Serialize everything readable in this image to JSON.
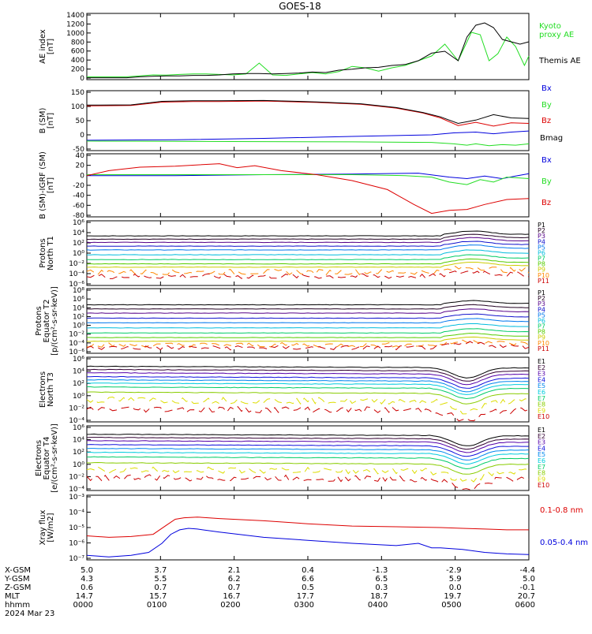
{
  "title": "GOES-18",
  "colors": {
    "black": "#000000",
    "red": "#dd0000",
    "green": "#22dd22",
    "blue": "#0000dd",
    "protons": [
      "#000000",
      "#220022",
      "#550088",
      "#1111cc",
      "#0077ee",
      "#00bbdd",
      "#00cc66",
      "#55cc00",
      "#cccc00",
      "#ff8800",
      "#cc0000"
    ],
    "electrons": [
      "#000000",
      "#330033",
      "#5500aa",
      "#1111dd",
      "#0088ee",
      "#00ccdd",
      "#00cc66",
      "#88cc00",
      "#dddd00",
      "#ff8800",
      "#cc0000"
    ]
  },
  "chart_data": [
    {
      "type": "line",
      "id": "ae",
      "ylabel": "AE index\n[nT]",
      "yticks": [
        "1400",
        "1200",
        "1000",
        "800",
        "600",
        "400",
        "200",
        "0"
      ],
      "ylim": [
        0,
        1400
      ],
      "series": [
        {
          "name": "Kyoto\nproxy AE",
          "color": "#22dd22",
          "x": [
            0,
            0.03,
            0.06,
            0.09,
            0.12,
            0.15,
            0.18,
            0.21,
            0.24,
            0.27,
            0.3,
            0.33,
            0.36,
            0.39,
            0.42,
            0.45,
            0.48,
            0.51,
            0.54,
            0.57,
            0.6,
            0.63,
            0.66,
            0.69,
            0.72,
            0.75,
            0.78,
            0.81,
            0.84,
            0.85,
            0.87,
            0.89,
            0.91,
            0.93,
            0.95,
            0.97,
            0.99,
            1.0
          ],
          "y": [
            60,
            60,
            60,
            60,
            80,
            100,
            95,
            110,
            120,
            120,
            110,
            100,
            120,
            350,
            100,
            90,
            120,
            150,
            120,
            170,
            280,
            250,
            180,
            250,
            300,
            400,
            500,
            750,
            400,
            600,
            1000,
            950,
            400,
            550,
            900,
            700,
            300,
            500
          ]
        },
        {
          "name": "Themis AE",
          "color": "#000000",
          "x": [
            0,
            0.03,
            0.06,
            0.09,
            0.12,
            0.15,
            0.18,
            0.21,
            0.24,
            0.27,
            0.3,
            0.33,
            0.36,
            0.39,
            0.42,
            0.45,
            0.48,
            0.51,
            0.54,
            0.57,
            0.6,
            0.63,
            0.66,
            0.69,
            0.72,
            0.75,
            0.78,
            0.81,
            0.84,
            0.86,
            0.88,
            0.9,
            0.92,
            0.94,
            0.96,
            0.98,
            1.0
          ],
          "y": [
            40,
            40,
            40,
            40,
            60,
            70,
            80,
            80,
            90,
            90,
            100,
            120,
            130,
            130,
            120,
            130,
            140,
            160,
            150,
            200,
            220,
            250,
            260,
            300,
            320,
            400,
            560,
            600,
            400,
            900,
            1150,
            1200,
            1100,
            850,
            800,
            750,
            800
          ]
        }
      ]
    },
    {
      "type": "line",
      "id": "bsm",
      "ylabel": "B (SM)\n[nT]",
      "yticks": [
        "150",
        "100",
        "50",
        "0",
        "-50"
      ],
      "ylim": [
        -60,
        160
      ],
      "series": [
        {
          "name": "Bx",
          "color": "#0000dd",
          "x": [
            0,
            0.2,
            0.4,
            0.6,
            0.78,
            0.83,
            0.88,
            0.92,
            0.96,
            1.0
          ],
          "y": [
            -22,
            -20,
            -15,
            -8,
            -2,
            5,
            8,
            2,
            8,
            12
          ]
        },
        {
          "name": "By",
          "color": "#22dd22",
          "x": [
            0,
            0.2,
            0.4,
            0.6,
            0.78,
            0.83,
            0.86,
            0.88,
            0.91,
            0.94,
            0.97,
            1.0
          ],
          "y": [
            -25,
            -26,
            -27,
            -28,
            -30,
            -35,
            -40,
            -35,
            -42,
            -38,
            -40,
            -35
          ]
        },
        {
          "name": "Bz",
          "color": "#dd0000",
          "x": [
            0,
            0.1,
            0.17,
            0.24,
            0.3,
            0.4,
            0.52,
            0.62,
            0.7,
            0.76,
            0.8,
            0.84,
            0.88,
            0.92,
            0.96,
            1.0
          ],
          "y": [
            104,
            106,
            118,
            120,
            120,
            122,
            117,
            110,
            96,
            78,
            60,
            32,
            44,
            30,
            42,
            40
          ]
        },
        {
          "name": "Bmag",
          "color": "#000000",
          "x": [
            0,
            0.1,
            0.17,
            0.24,
            0.3,
            0.4,
            0.52,
            0.62,
            0.7,
            0.76,
            0.8,
            0.84,
            0.88,
            0.92,
            0.96,
            1.0
          ],
          "y": [
            107,
            108,
            121,
            123,
            123,
            124,
            119,
            112,
            98,
            80,
            64,
            40,
            52,
            72,
            60,
            58
          ]
        }
      ]
    },
    {
      "type": "line",
      "id": "bigrf",
      "ylabel": "B (SM)-IGRF (SM)\n[nT]",
      "yticks": [
        "40",
        "20",
        "0",
        "-20",
        "-40",
        "-60",
        "-80"
      ],
      "ylim": [
        -85,
        42
      ],
      "series": [
        {
          "name": "Bx",
          "color": "#0000dd",
          "x": [
            0,
            0.2,
            0.4,
            0.6,
            0.75,
            0.82,
            0.86,
            0.9,
            0.94,
            0.97,
            1.0
          ],
          "y": [
            -2,
            -2,
            0,
            1,
            3,
            -5,
            -8,
            -3,
            -8,
            -3,
            2
          ]
        },
        {
          "name": "By",
          "color": "#22dd22",
          "x": [
            0,
            0.2,
            0.4,
            0.6,
            0.72,
            0.78,
            0.82,
            0.86,
            0.89,
            0.92,
            0.95,
            1.0
          ],
          "y": [
            0,
            0,
            0,
            0,
            -2,
            -5,
            -15,
            -20,
            -10,
            -15,
            -5,
            -8
          ]
        },
        {
          "name": "Bz",
          "color": "#dd0000",
          "x": [
            0,
            0.05,
            0.12,
            0.2,
            0.3,
            0.34,
            0.38,
            0.44,
            0.52,
            0.6,
            0.68,
            0.74,
            0.78,
            0.82,
            0.86,
            0.9,
            0.95,
            1.0
          ],
          "y": [
            -2,
            8,
            15,
            17,
            22,
            14,
            18,
            8,
            0,
            -12,
            -30,
            -60,
            -78,
            -72,
            -70,
            -60,
            -50,
            -48
          ]
        }
      ]
    },
    {
      "type": "line",
      "id": "pnt1",
      "ylabel": "Protons\nNorth T1",
      "yticks": [
        "10⁶",
        "10⁴",
        "10²",
        "10⁰",
        "10⁻²",
        "10⁻⁴",
        "10⁻⁶"
      ],
      "ylim": [
        -6,
        6
      ],
      "series": [
        {
          "name": "P1",
          "color": "#000000"
        },
        {
          "name": "P2",
          "color": "#220022"
        },
        {
          "name": "P3",
          "color": "#550088"
        },
        {
          "name": "P4",
          "color": "#1111cc"
        },
        {
          "name": "P5",
          "color": "#0077ee"
        },
        {
          "name": "P6",
          "color": "#00bbdd"
        },
        {
          "name": "P7",
          "color": "#00cc66"
        },
        {
          "name": "P8",
          "color": "#55cc00"
        },
        {
          "name": "P9",
          "color": "#cccc00"
        },
        {
          "name": "P10",
          "color": "#ff8800"
        },
        {
          "name": "P11",
          "color": "#cc0000"
        }
      ],
      "base_levels": [
        3.2,
        2.6,
        2.0,
        1.3,
        0.6,
        -0.3,
        -1.2,
        -2.0,
        -2.6,
        -3.5,
        -4.3
      ]
    },
    {
      "type": "line",
      "id": "pet2",
      "ylabel": "Protons\nEquator T2\n[p/(cm²-s-sr-keV)]",
      "yticks": [
        "10⁸",
        "10⁶",
        "10⁴",
        "10²",
        "10⁰",
        "10⁻²",
        "10⁻⁴",
        "10⁻⁶"
      ],
      "ylim": [
        -6,
        8
      ],
      "series": [
        {
          "name": "P1",
          "color": "#000000"
        },
        {
          "name": "P2",
          "color": "#220022"
        },
        {
          "name": "P3",
          "color": "#550088"
        },
        {
          "name": "P4",
          "color": "#1111cc"
        },
        {
          "name": "P5",
          "color": "#0077ee"
        },
        {
          "name": "P6",
          "color": "#00bbdd"
        },
        {
          "name": "P7",
          "color": "#00cc66"
        },
        {
          "name": "P8",
          "color": "#55cc00"
        },
        {
          "name": "P9",
          "color": "#cccc00"
        },
        {
          "name": "P10",
          "color": "#ff8800"
        },
        {
          "name": "P11",
          "color": "#cc0000"
        }
      ],
      "base_levels": [
        4.5,
        3.6,
        2.7,
        1.6,
        0.6,
        -0.5,
        -1.6,
        -2.6,
        -3.4,
        -4.2,
        -4.8
      ]
    },
    {
      "type": "line",
      "id": "ent3",
      "ylabel": "Electrons\nNorth T3",
      "yticks": [
        "10⁶",
        "10⁴",
        "10²",
        "10⁰",
        "10⁻²",
        "10⁻⁴"
      ],
      "ylim": [
        -4,
        6
      ],
      "series": [
        {
          "name": "E1",
          "color": "#000000"
        },
        {
          "name": "E2",
          "color": "#330033"
        },
        {
          "name": "E3",
          "color": "#5500aa"
        },
        {
          "name": "E4",
          "color": "#1111dd"
        },
        {
          "name": "E5",
          "color": "#0088ee"
        },
        {
          "name": "E6",
          "color": "#00ccdd"
        },
        {
          "name": "E7",
          "color": "#00cc66"
        },
        {
          "name": "E8",
          "color": "#88cc00"
        },
        {
          "name": "E9",
          "color": "#dddd00"
        },
        {
          "name": "E10",
          "color": "#cc0000"
        }
      ],
      "base_levels": [
        4.6,
        4.1,
        3.6,
        3.0,
        2.5,
        2.0,
        1.4,
        0.6,
        -0.6,
        -2.0
      ]
    },
    {
      "type": "line",
      "id": "eet4",
      "ylabel": "Electrons\nEquator T4\n[e/(cm²-s-sr-keV)]",
      "yticks": [
        "10⁶",
        "10⁴",
        "10²",
        "10⁰",
        "10⁻²",
        "10⁻⁴"
      ],
      "ylim": [
        -4,
        6
      ],
      "series": [
        {
          "name": "E1",
          "color": "#000000"
        },
        {
          "name": "E2",
          "color": "#330033"
        },
        {
          "name": "E3",
          "color": "#5500aa"
        },
        {
          "name": "E4",
          "color": "#1111dd"
        },
        {
          "name": "E5",
          "color": "#0088ee"
        },
        {
          "name": "E6",
          "color": "#00ccdd"
        },
        {
          "name": "E7",
          "color": "#00cc66"
        },
        {
          "name": "E8",
          "color": "#88cc00"
        },
        {
          "name": "E9",
          "color": "#dddd00"
        },
        {
          "name": "E10",
          "color": "#cc0000"
        }
      ],
      "base_levels": [
        4.7,
        4.2,
        3.7,
        3.1,
        2.5,
        1.9,
        1.2,
        0.3,
        -0.8,
        -2.0
      ]
    },
    {
      "type": "line",
      "id": "xray",
      "ylabel": "Xray flux\n[W/m2]",
      "yticks": [
        "10⁻³",
        "10⁻⁴",
        "10⁻⁵",
        "10⁻⁶",
        "10⁻⁷"
      ],
      "ylim": [
        -7.3,
        -3
      ],
      "series": [
        {
          "name": "0.1-0.8 nm",
          "color": "#dd0000",
          "x": [
            0,
            0.05,
            0.1,
            0.15,
            0.18,
            0.2,
            0.22,
            0.25,
            0.3,
            0.4,
            0.5,
            0.6,
            0.7,
            0.8,
            0.85,
            0.9,
            0.95,
            1.0
          ],
          "y": [
            -5.7,
            -5.8,
            -5.75,
            -5.6,
            -5.0,
            -4.6,
            -4.5,
            -4.45,
            -4.55,
            -4.7,
            -4.9,
            -5.05,
            -5.1,
            -5.15,
            -5.2,
            -5.25,
            -5.3,
            -5.3
          ]
        },
        {
          "name": "0.05-0.4 nm",
          "color": "#0000dd",
          "x": [
            0,
            0.05,
            0.1,
            0.14,
            0.17,
            0.19,
            0.21,
            0.23,
            0.25,
            0.3,
            0.4,
            0.5,
            0.6,
            0.7,
            0.75,
            0.78,
            0.8,
            0.85,
            0.9,
            0.95,
            1.0
          ],
          "y": [
            -7.0,
            -7.1,
            -7.0,
            -6.8,
            -6.2,
            -5.6,
            -5.3,
            -5.2,
            -5.25,
            -5.45,
            -5.8,
            -6.0,
            -6.2,
            -6.35,
            -6.2,
            -6.5,
            -6.5,
            -6.6,
            -6.8,
            -6.9,
            -6.95
          ]
        }
      ]
    }
  ],
  "footer": {
    "row_labels": [
      "X-GSM",
      "Y-GSM",
      "Z-GSM",
      "MLT",
      "hhmm",
      "2024 Mar 23"
    ],
    "columns": [
      {
        "x_gsm": "5.0",
        "y_gsm": "4.3",
        "z_gsm": "0.6",
        "mlt": "14.7",
        "hhmm": "0000"
      },
      {
        "x_gsm": "3.7",
        "y_gsm": "5.5",
        "z_gsm": "0.7",
        "mlt": "15.7",
        "hhmm": "0100"
      },
      {
        "x_gsm": "2.1",
        "y_gsm": "6.2",
        "z_gsm": "0.7",
        "mlt": "16.7",
        "hhmm": "0200"
      },
      {
        "x_gsm": "0.4",
        "y_gsm": "6.6",
        "z_gsm": "0.5",
        "mlt": "17.7",
        "hhmm": "0300"
      },
      {
        "x_gsm": "-1.3",
        "y_gsm": "6.5",
        "z_gsm": "0.3",
        "mlt": "18.7",
        "hhmm": "0400"
      },
      {
        "x_gsm": "-2.9",
        "y_gsm": "5.9",
        "z_gsm": "0.0",
        "mlt": "19.7",
        "hhmm": "0500"
      },
      {
        "x_gsm": "-4.4",
        "y_gsm": "5.0",
        "z_gsm": "-0.1",
        "mlt": "20.7",
        "hhmm": "0600"
      }
    ]
  }
}
